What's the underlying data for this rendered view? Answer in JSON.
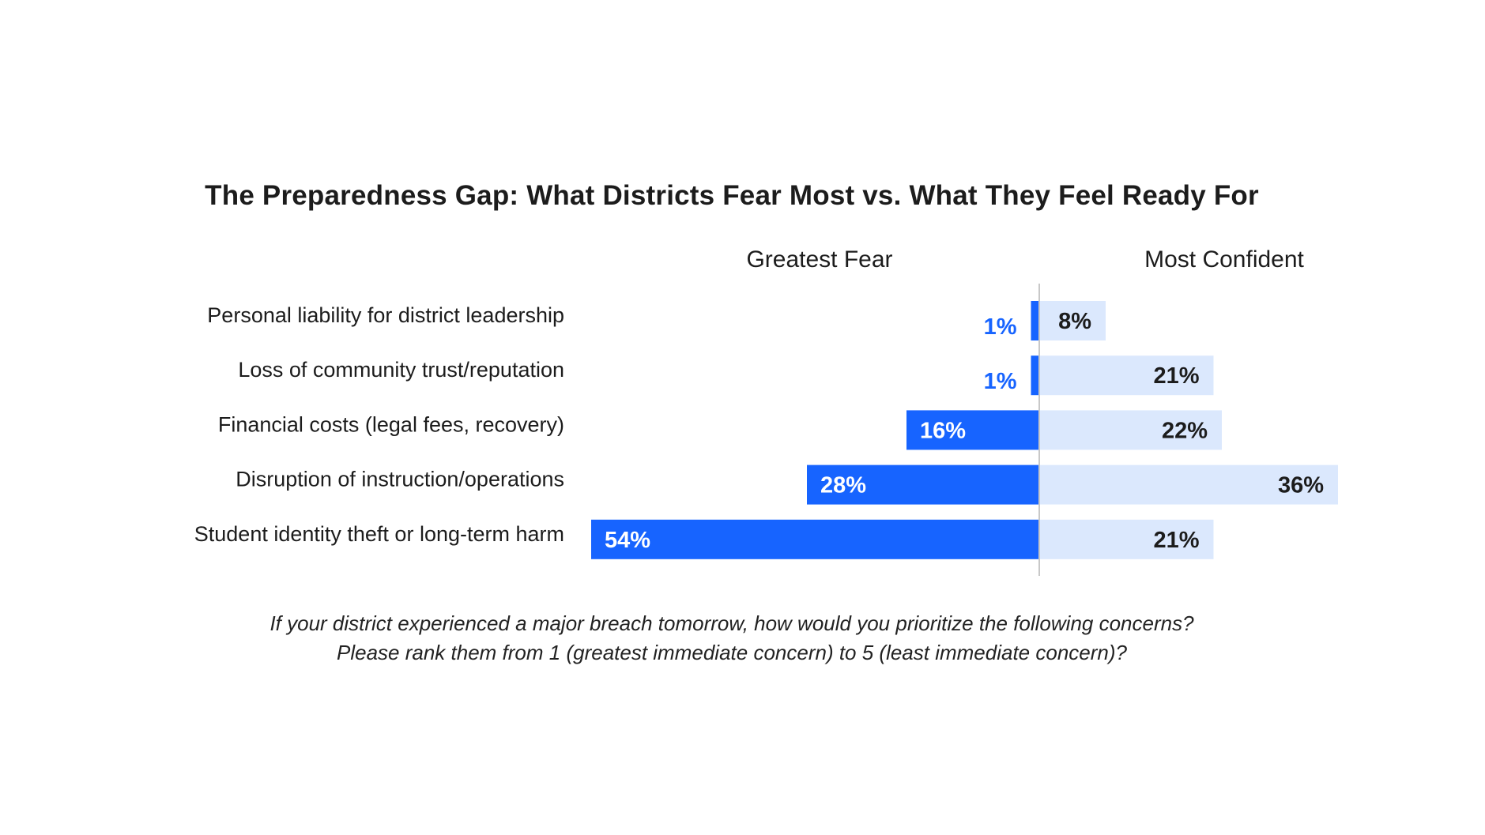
{
  "chart_data": {
    "type": "bar",
    "orientation": "horizontal-diverging",
    "title": "The Preparedness Gap: What Districts Fear Most vs. What They Feel Ready For",
    "categories": [
      "Personal liability for district leadership",
      "Loss of community trust/reputation",
      "Financial costs (legal fees, recovery)",
      "Disruption of instruction/operations",
      "Student identity theft or long-term harm"
    ],
    "series": [
      {
        "name": "Greatest Fear",
        "values": [
          1,
          1,
          16,
          28,
          54
        ],
        "labels": [
          "1%",
          "1%",
          "16%",
          "28%",
          "54%"
        ],
        "color": "#1764FF",
        "side": "left"
      },
      {
        "name": "Most Confident",
        "values": [
          8,
          21,
          22,
          36,
          21
        ],
        "labels": [
          "8%",
          "21%",
          "22%",
          "36%",
          "21%"
        ],
        "color": "#DBE8FD",
        "side": "right"
      }
    ],
    "unit": "%",
    "footnote": [
      "If your district experienced a major breach tomorrow, how would you prioritize the following concerns?",
      "Please rank them from 1 (greatest immediate concern) to 5 (least immediate concern)?"
    ]
  }
}
